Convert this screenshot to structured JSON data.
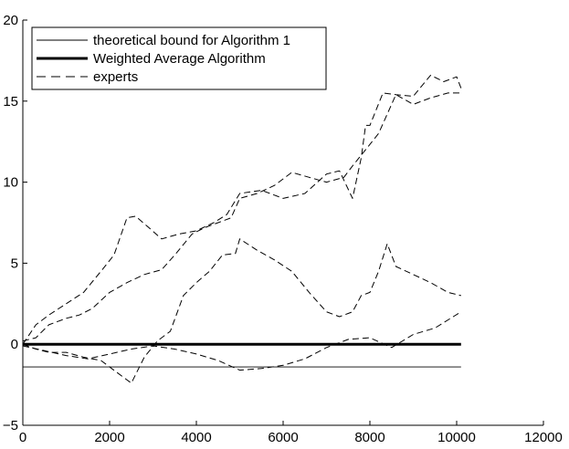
{
  "chart_data": {
    "type": "line",
    "title": "",
    "xlabel": "",
    "ylabel": "",
    "xlim": [
      0,
      12000
    ],
    "ylim": [
      -5,
      20
    ],
    "x_ticks": [
      0,
      2000,
      4000,
      6000,
      8000,
      10000,
      12000
    ],
    "y_ticks": [
      -5,
      0,
      5,
      10,
      15,
      20
    ],
    "x_tick_labels": [
      "0",
      "2000",
      "4000",
      "6000",
      "8000",
      "10000",
      "12000"
    ],
    "y_tick_labels": [
      "−5",
      "0",
      "5",
      "10",
      "15",
      "20"
    ],
    "grid": false,
    "legend": {
      "position": "top-left",
      "entries": [
        {
          "label": "theoretical bound for Algorithm 1",
          "style": "thin-solid"
        },
        {
          "label": "Weighted Average Algorithm",
          "style": "thick-solid"
        },
        {
          "label": "experts",
          "style": "dashed"
        }
      ]
    },
    "series": [
      {
        "name": "theoretical bound for Algorithm 1",
        "style": "thin-solid",
        "x": [
          0,
          10100
        ],
        "y": [
          -1.4,
          -1.4
        ]
      },
      {
        "name": "Weighted Average Algorithm",
        "style": "thick-solid",
        "x": [
          0,
          10100
        ],
        "y": [
          0,
          0
        ]
      },
      {
        "style": "dashed",
        "x": [
          0,
          300,
          600,
          1000,
          1400,
          1800,
          2100,
          2400,
          2600,
          2900,
          3200,
          3600,
          4000,
          4400,
          4700,
          5000,
          5500,
          6000,
          6500,
          7000,
          7300,
          7600,
          7800,
          7900,
          8000,
          8300,
          8600,
          9000,
          9400,
          9700,
          10000,
          10100
        ],
        "y": [
          0,
          1.2,
          1.8,
          2.5,
          3.2,
          4.5,
          5.5,
          7.8,
          7.9,
          7.2,
          6.5,
          6.8,
          7.0,
          7.5,
          8.0,
          9.3,
          9.5,
          9.0,
          9.3,
          10.5,
          10.7,
          9.0,
          11.5,
          13.5,
          13.5,
          15.5,
          15.4,
          15.3,
          16.6,
          16.2,
          16.5,
          15.8
        ]
      },
      {
        "style": "dashed",
        "x": [
          0,
          300,
          600,
          1000,
          1300,
          1600,
          2000,
          2400,
          2800,
          3200,
          3500,
          3900,
          4200,
          4500,
          4800,
          5000,
          5400,
          5800,
          6200,
          6600,
          7000,
          7400,
          7600,
          7900,
          8200,
          8600,
          9000,
          9400,
          9800,
          10100
        ],
        "y": [
          0.2,
          0.4,
          1.2,
          1.6,
          1.8,
          2.2,
          3.2,
          3.8,
          4.3,
          4.6,
          5.5,
          6.8,
          7.2,
          7.5,
          7.8,
          9.0,
          9.3,
          9.8,
          10.6,
          10.3,
          10.0,
          10.3,
          11.0,
          12.0,
          13.0,
          15.4,
          14.8,
          15.2,
          15.5,
          15.5
        ]
      },
      {
        "style": "dashed",
        "x": [
          0,
          300,
          600,
          1000,
          1400,
          1800,
          2200,
          2500,
          2800,
          3100,
          3400,
          3700,
          4000,
          4300,
          4600,
          4900,
          5000,
          5400,
          5800,
          6200,
          6600,
          7000,
          7300,
          7600,
          7800,
          8000,
          8200,
          8400,
          8600,
          9000,
          9400,
          9800,
          10100
        ],
        "y": [
          0,
          -0.3,
          -0.5,
          -0.5,
          -0.8,
          -1.0,
          -1.8,
          -2.4,
          -0.8,
          0.2,
          0.8,
          3.0,
          3.8,
          4.5,
          5.5,
          5.6,
          6.5,
          5.8,
          5.2,
          4.5,
          3.2,
          2.0,
          1.7,
          2.0,
          3.0,
          3.2,
          4.5,
          6.2,
          4.8,
          4.3,
          3.8,
          3.2,
          3.0
        ]
      },
      {
        "style": "dashed",
        "x": [
          0,
          500,
          1000,
          1500,
          2000,
          2500,
          3000,
          3500,
          4000,
          4500,
          5000,
          5500,
          6000,
          6500,
          7000,
          7500,
          8000,
          8500,
          9000,
          9500,
          10100
        ],
        "y": [
          -0.1,
          -0.4,
          -0.7,
          -0.9,
          -0.6,
          -0.3,
          -0.1,
          -0.3,
          -0.6,
          -1.0,
          -1.6,
          -1.5,
          -1.3,
          -0.9,
          -0.2,
          0.3,
          0.4,
          -0.2,
          0.6,
          1.0,
          2.0
        ]
      }
    ]
  }
}
